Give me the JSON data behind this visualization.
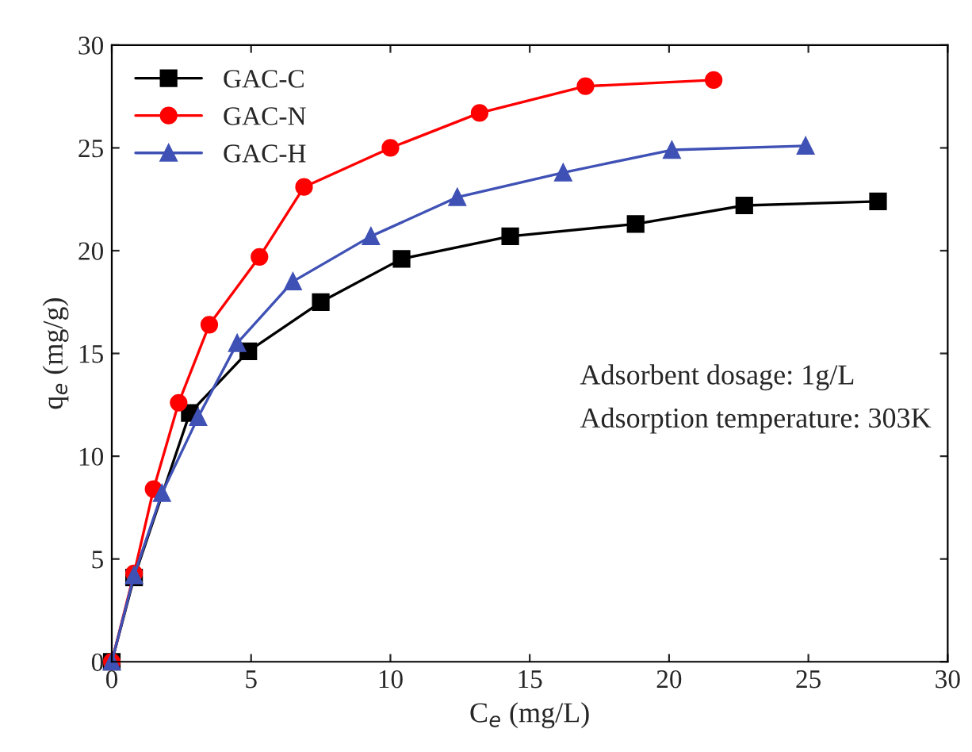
{
  "chart_data": {
    "type": "line",
    "xlabel": "C$_{e}$ (mg/L)",
    "ylabel": "q$_{e}$ (mg/g)",
    "xlim": [
      0,
      30
    ],
    "ylim": [
      0,
      30
    ],
    "xticks": [
      0,
      5,
      10,
      15,
      20,
      25,
      30
    ],
    "yticks": [
      0,
      5,
      10,
      15,
      20,
      25,
      30
    ],
    "grid": false,
    "legend": "top left",
    "annotations": [
      "Adsorbent dosage: 1g/L",
      "Adsorption temperature: 303K"
    ],
    "series": [
      {
        "name": "GAC-C",
        "color": "#000000",
        "marker": "square",
        "x": [
          0,
          0.8,
          2.8,
          4.9,
          7.5,
          10.4,
          14.3,
          18.8,
          22.7,
          27.5
        ],
        "values": [
          0,
          4.1,
          12.1,
          15.1,
          17.5,
          19.6,
          20.7,
          21.3,
          22.2,
          22.4
        ]
      },
      {
        "name": "GAC-N",
        "color": "#ff0000",
        "marker": "circle",
        "x": [
          0,
          0.8,
          1.5,
          2.4,
          3.5,
          5.3,
          6.9,
          10.0,
          13.2,
          17.0,
          21.6
        ],
        "values": [
          0,
          4.3,
          8.4,
          12.6,
          16.4,
          19.7,
          23.1,
          25.0,
          26.7,
          28.0,
          28.3
        ]
      },
      {
        "name": "GAC-H",
        "color": "#3f51b5",
        "marker": "triangle",
        "x": [
          0,
          0.8,
          1.8,
          3.1,
          4.5,
          6.5,
          9.3,
          12.4,
          16.2,
          20.1,
          24.9
        ],
        "values": [
          0,
          4.2,
          8.2,
          11.9,
          15.5,
          18.5,
          20.7,
          22.6,
          23.8,
          24.9,
          25.1
        ]
      }
    ]
  }
}
